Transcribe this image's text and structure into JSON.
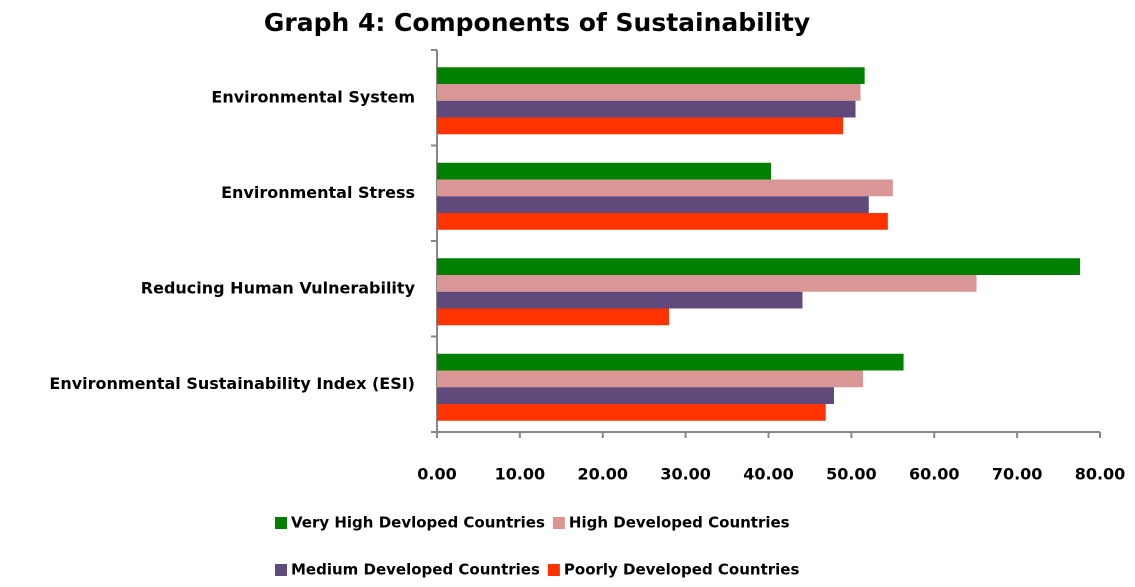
{
  "chart_data": {
    "type": "hbar",
    "title": "Graph 4:  Components of Sustainability",
    "categories": [
      "Environmental System",
      "Environmental Stress",
      "Reducing Human Vulnerability",
      "Environmental Sustainability  Index (ESI)"
    ],
    "series": [
      {
        "name": "Very High Devloped Countries",
        "color": "#008000",
        "values": [
          51.6,
          40.3,
          77.6,
          56.3
        ]
      },
      {
        "name": "High Developed Countries",
        "color": "#d99694",
        "values": [
          51.1,
          55.0,
          65.1,
          51.4
        ]
      },
      {
        "name": "Medium Developed Countries",
        "color": "#604a7b",
        "values": [
          50.5,
          52.1,
          44.1,
          47.9
        ]
      },
      {
        "name": "Poorly Developed Countries",
        "color": "#ff3300",
        "values": [
          49.0,
          54.4,
          28.0,
          46.9
        ]
      }
    ],
    "xlim": [
      0,
      80
    ],
    "xticks": [
      {
        "value": 0,
        "label": "0.00"
      },
      {
        "value": 10,
        "label": "10.00"
      },
      {
        "value": 20,
        "label": "20.00"
      },
      {
        "value": 30,
        "label": "30.00"
      },
      {
        "value": 40,
        "label": "40.00"
      },
      {
        "value": 50,
        "label": "50.00"
      },
      {
        "value": 60,
        "label": "60.00"
      },
      {
        "value": 70,
        "label": "70.00"
      },
      {
        "value": 80,
        "label": "80.00"
      }
    ],
    "legend": "bottom"
  }
}
